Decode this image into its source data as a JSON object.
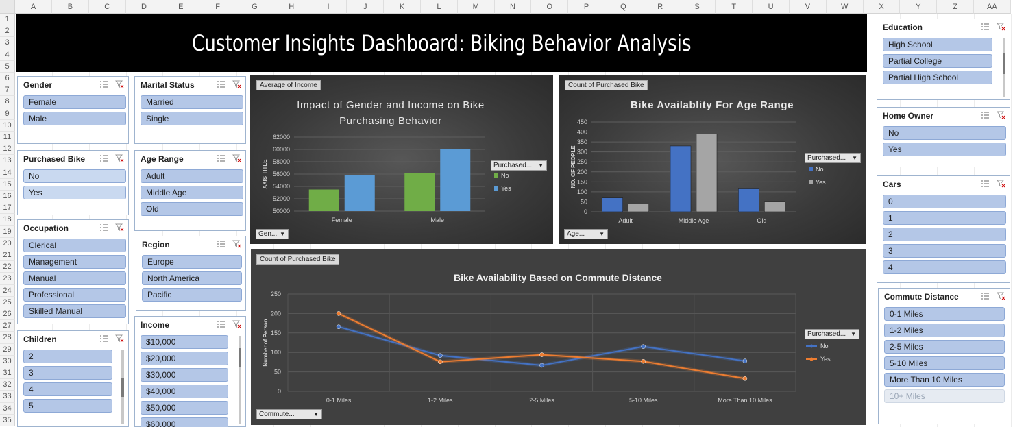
{
  "sheet": {
    "columns": [
      "A",
      "B",
      "C",
      "D",
      "E",
      "F",
      "G",
      "H",
      "I",
      "J",
      "K",
      "L",
      "M",
      "N",
      "O",
      "P",
      "Q",
      "R",
      "S",
      "T",
      "U",
      "V",
      "W",
      "X",
      "Y",
      "Z",
      "AA"
    ],
    "rows": [
      "1",
      "2",
      "3",
      "4",
      "5",
      "6",
      "7",
      "8",
      "9",
      "10",
      "11",
      "12",
      "13",
      "14",
      "15",
      "16",
      "17",
      "18",
      "19",
      "20",
      "21",
      "22",
      "23",
      "24",
      "25",
      "26",
      "27",
      "28",
      "29",
      "30",
      "31",
      "32",
      "33",
      "34",
      "35"
    ]
  },
  "banner": {
    "title": "Customer Insights Dashboard: Biking Behavior Analysis"
  },
  "slicers": {
    "gender": {
      "title": "Gender",
      "items": [
        "Female",
        "Male"
      ]
    },
    "marital": {
      "title": "Marital Status",
      "items": [
        "Married",
        "Single"
      ]
    },
    "purchased": {
      "title": "Purchased Bike",
      "items": [
        "No",
        "Yes"
      ]
    },
    "age_range": {
      "title": "Age Range",
      "items": [
        "Adult",
        "Middle Age",
        "Old"
      ]
    },
    "occupation": {
      "title": "Occupation",
      "items": [
        "Clerical",
        "Management",
        "Manual",
        "Professional",
        "Skilled Manual"
      ]
    },
    "region": {
      "title": "Region",
      "items": [
        "Europe",
        "North America",
        "Pacific"
      ]
    },
    "children": {
      "title": "Children",
      "items": [
        "2",
        "3",
        "4",
        "5"
      ]
    },
    "income": {
      "title": "Income",
      "items": [
        "$10,000",
        "$20,000",
        "$30,000",
        "$40,000",
        "$50,000",
        "$60,000"
      ]
    },
    "education": {
      "title": "Education",
      "items": [
        "High School",
        "Partial College",
        "Partial High School"
      ]
    },
    "home_owner": {
      "title": "Home Owner",
      "items": [
        "No",
        "Yes"
      ]
    },
    "cars": {
      "title": "Cars",
      "items": [
        "0",
        "1",
        "2",
        "3",
        "4"
      ]
    },
    "commute": {
      "title": "Commute Distance",
      "items": [
        "0-1 Miles",
        "1-2 Miles",
        "2-5 Miles",
        "5-10 Miles",
        "More Than 10 Miles",
        "10+ Miles"
      ]
    }
  },
  "chart1": {
    "field_button": "Average of Income",
    "axis_button": "Gen...",
    "legend_button": "Purchased...",
    "colors": {
      "No": "#70ad47",
      "Yes": "#5b9bd5"
    }
  },
  "chart2": {
    "field_button": "Count of Purchased Bike",
    "axis_button": "Age...",
    "legend_button": "Purchased...",
    "colors": {
      "No": "#4472c4",
      "Yes": "#a5a5a5"
    }
  },
  "chart3": {
    "field_button": "Count of Purchased Bike",
    "axis_button": "Commute...",
    "legend_button": "Purchased...",
    "colors": {
      "No": "#4472c4",
      "Yes": "#ed7d31"
    }
  },
  "chart_data": [
    {
      "type": "bar",
      "title": "Impact of Gender and Income on Bike Purchasing Behavior",
      "xlabel": "",
      "ylabel": "AXIS TITLE",
      "categories": [
        "Female",
        "Male"
      ],
      "series": [
        {
          "name": "No",
          "values": [
            53500,
            56200
          ]
        },
        {
          "name": "Yes",
          "values": [
            55800,
            60100
          ]
        }
      ],
      "ylim": [
        50000,
        62000
      ],
      "yticks": [
        "50000",
        "52000",
        "54000",
        "56000",
        "58000",
        "60000",
        "62000"
      ],
      "grid": true,
      "legend": "right"
    },
    {
      "type": "bar",
      "title": "Bike Availablity For Age Range",
      "xlabel": "",
      "ylabel": "NO. OF PEOPLE",
      "categories": [
        "Adult",
        "Middle Age",
        "Old"
      ],
      "series": [
        {
          "name": "No",
          "values": [
            70,
            330,
            115
          ]
        },
        {
          "name": "Yes",
          "values": [
            40,
            390,
            52
          ]
        }
      ],
      "ylim": [
        0,
        450
      ],
      "yticks": [
        "0",
        "50",
        "100",
        "150",
        "200",
        "250",
        "300",
        "350",
        "400",
        "450"
      ],
      "grid": true,
      "legend": "right"
    },
    {
      "type": "line",
      "title": "Bike Availability Based on Commute Distance",
      "xlabel": "",
      "ylabel": "Number of Person",
      "categories": [
        "0-1 Miles",
        "1-2 Miles",
        "2-5 Miles",
        "5-10 Miles",
        "More Than 10 Miles"
      ],
      "series": [
        {
          "name": "No",
          "values": [
            166,
            92,
            67,
            115,
            78
          ]
        },
        {
          "name": "Yes",
          "values": [
            200,
            76,
            94,
            77,
            33
          ]
        }
      ],
      "ylim": [
        0,
        250
      ],
      "yticks": [
        "0",
        "50",
        "100",
        "150",
        "200",
        "250"
      ],
      "grid": true,
      "legend": "right"
    }
  ]
}
